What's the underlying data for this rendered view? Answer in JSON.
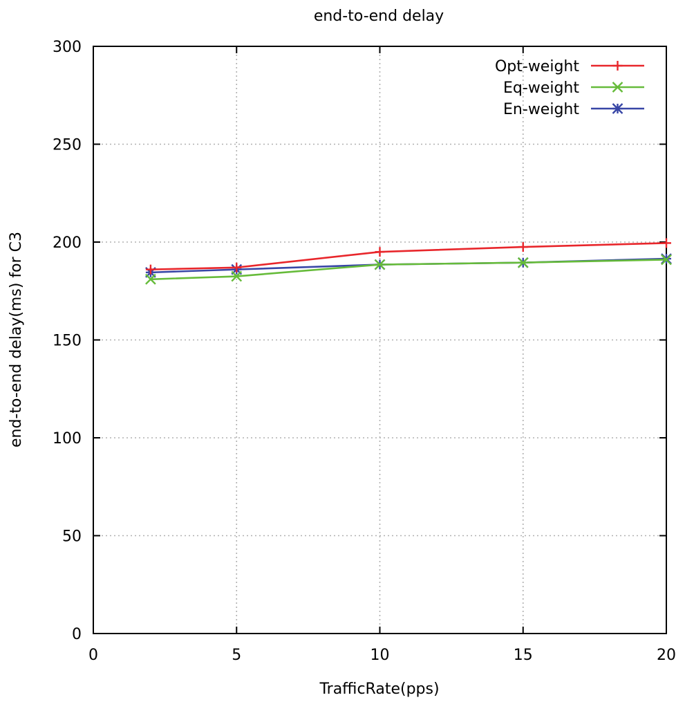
{
  "chart_data": {
    "type": "line",
    "title": "end-to-end delay",
    "xlabel": "TrafficRate(pps)",
    "ylabel": "end-to-end delay(ms)  for C3",
    "xlim": [
      0,
      20
    ],
    "ylim": [
      0,
      300
    ],
    "xticks": [
      0,
      5,
      10,
      15,
      20
    ],
    "yticks": [
      0,
      50,
      100,
      150,
      200,
      250,
      300
    ],
    "grid": true,
    "legend_position": "top-right",
    "x": [
      2,
      5,
      10,
      15,
      20
    ],
    "series": [
      {
        "name": "Opt-weight",
        "color": "#e8262b",
        "marker": "plus",
        "values": [
          186,
          187,
          195,
          197.5,
          199.5
        ]
      },
      {
        "name": "Eq-weight",
        "color": "#66bb3a",
        "marker": "cross",
        "values": [
          181,
          182.5,
          188.5,
          189.5,
          191
        ]
      },
      {
        "name": "En-weight",
        "color": "#3846a6",
        "marker": "star",
        "values": [
          184.5,
          186,
          188.5,
          189.5,
          191.5
        ]
      }
    ]
  }
}
